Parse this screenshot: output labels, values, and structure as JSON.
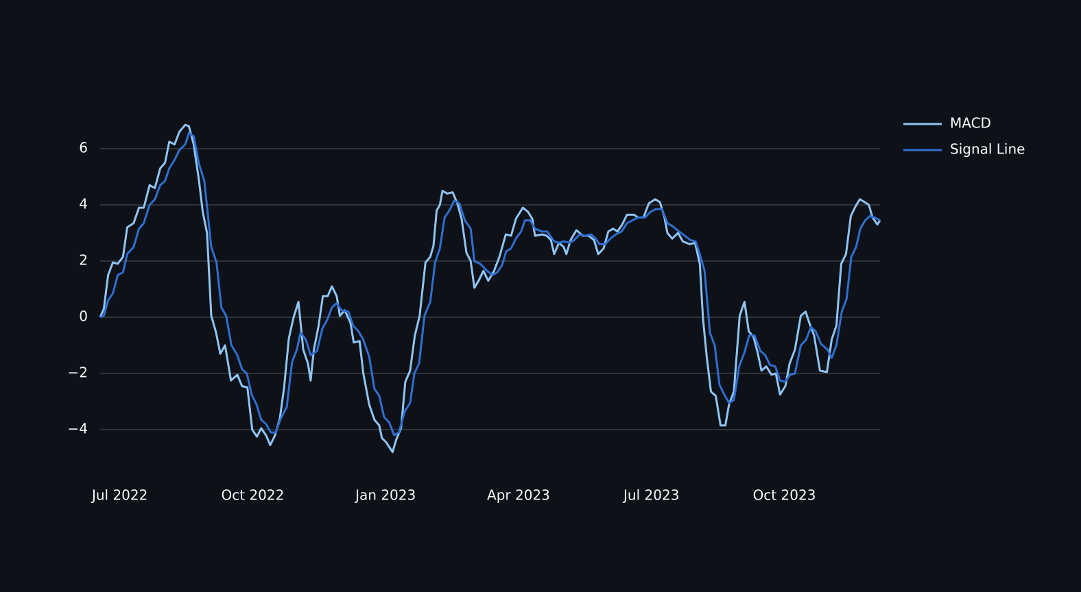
{
  "chart_data": {
    "type": "line",
    "xlim": [
      2022.463,
      2023.93
    ],
    "xticks": [
      {
        "value": 2022.5,
        "label": "Jul 2022"
      },
      {
        "value": 2022.75,
        "label": "Oct 2022"
      },
      {
        "value": 2023.0,
        "label": "Jan 2023"
      },
      {
        "value": 2023.25,
        "label": "Apr 2023"
      },
      {
        "value": 2023.5,
        "label": "Jul 2023"
      },
      {
        "value": 2023.75,
        "label": "Oct 2023"
      }
    ],
    "ylim": [
      -5,
      7
    ],
    "yticks": [
      {
        "value": -4,
        "label": "−4"
      },
      {
        "value": -2,
        "label": "−2"
      },
      0,
      2,
      4,
      6
    ],
    "grid": true,
    "legend": "top-right",
    "series": [
      {
        "name": "MACD",
        "color": "#8ec5f5",
        "x": [
          2022.463,
          2022.47,
          2022.478,
          2022.487,
          2022.496,
          2022.506,
          2022.514,
          2022.526,
          2022.536,
          2022.545,
          2022.556,
          2022.566,
          2022.576,
          2022.585,
          2022.593,
          2022.603,
          2022.612,
          2022.623,
          2022.63,
          2022.639,
          2022.649,
          2022.656,
          2022.664,
          2022.672,
          2022.681,
          2022.689,
          2022.698,
          2022.709,
          2022.721,
          2022.73,
          2022.74,
          2022.749,
          2022.758,
          2022.766,
          2022.775,
          2022.783,
          2022.792,
          2022.801,
          2022.809,
          2022.818,
          2022.827,
          2022.836,
          2022.845,
          2022.854,
          2022.859,
          2022.865,
          2022.874,
          2022.882,
          2022.891,
          2022.899,
          2022.908,
          2022.914,
          2022.923,
          2022.934,
          2022.94,
          2022.951,
          2022.958,
          2022.969,
          2022.979,
          2022.988,
          2022.993,
          2023.001,
          2023.013,
          2023.02,
          2023.029,
          2023.037,
          2023.046,
          2023.055,
          2023.064,
          2023.075,
          2023.084,
          2023.09,
          2023.096,
          2023.102,
          2023.107,
          2023.116,
          2023.126,
          2023.135,
          2023.143,
          2023.152,
          2023.16,
          2023.167,
          2023.175,
          2023.184,
          2023.193,
          2023.204,
          2023.214,
          2023.226,
          2023.236,
          2023.245,
          2023.258,
          2023.268,
          2023.276,
          2023.281,
          2023.294,
          2023.303,
          2023.311,
          2023.317,
          2023.326,
          2023.335,
          2023.34,
          2023.348,
          2023.359,
          2023.371,
          2023.382,
          2023.392,
          2023.4,
          2023.41,
          2023.419,
          2023.428,
          2023.436,
          2023.445,
          2023.454,
          2023.467,
          2023.475,
          2023.485,
          2023.495,
          2023.507,
          2023.516,
          2023.524,
          2023.53,
          2023.539,
          2023.55,
          2023.559,
          2023.572,
          2023.582,
          2023.591,
          2023.597,
          2023.604,
          2023.612,
          2023.621,
          2023.63,
          2023.639,
          2023.646,
          2023.655,
          2023.666,
          2023.675,
          2023.683,
          2023.692,
          2023.699,
          2023.707,
          2023.716,
          2023.726,
          2023.734,
          2023.742,
          2023.752,
          2023.76,
          2023.77,
          2023.781,
          2023.79,
          2023.797,
          2023.806,
          2023.817,
          2023.83,
          2023.839,
          2023.848,
          2023.857,
          2023.866,
          2023.875,
          2023.884,
          2023.892,
          2023.901,
          2023.909,
          2023.916,
          2023.925,
          2023.93
        ],
        "values": [
          0,
          0.3,
          1.5,
          1.95,
          1.9,
          2.15,
          3.2,
          3.35,
          3.9,
          3.9,
          4.7,
          4.6,
          5.3,
          5.5,
          6.25,
          6.15,
          6.6,
          6.85,
          6.8,
          6.15,
          4.85,
          3.75,
          3.0,
          0.05,
          -0.55,
          -1.3,
          -1.0,
          -2.25,
          -2.05,
          -2.45,
          -2.5,
          -4.0,
          -4.25,
          -3.95,
          -4.2,
          -4.55,
          -4.2,
          -3.6,
          -2.5,
          -0.75,
          0,
          0.55,
          -1.15,
          -1.65,
          -2.25,
          -1.15,
          -0.3,
          0.75,
          0.75,
          1.1,
          0.75,
          0.05,
          0.25,
          -0.2,
          -0.9,
          -0.85,
          -2.0,
          -3.1,
          -3.65,
          -3.85,
          -4.3,
          -4.45,
          -4.8,
          -4.35,
          -3.95,
          -2.3,
          -1.9,
          -0.65,
          0.05,
          1.95,
          2.15,
          2.55,
          3.8,
          4.0,
          4.5,
          4.4,
          4.45,
          4.05,
          3.5,
          2.3,
          2.0,
          1.05,
          1.3,
          1.65,
          1.3,
          1.65,
          2.15,
          2.95,
          2.9,
          3.5,
          3.9,
          3.75,
          3.5,
          2.9,
          2.95,
          2.9,
          2.75,
          2.25,
          2.65,
          2.5,
          2.25,
          2.75,
          3.1,
          2.9,
          2.9,
          2.75,
          2.25,
          2.45,
          3.05,
          3.15,
          3.05,
          3.3,
          3.65,
          3.65,
          3.55,
          3.55,
          4.05,
          4.2,
          4.1,
          3.6,
          3.0,
          2.8,
          3.0,
          2.7,
          2.6,
          2.65,
          1.9,
          -0.05,
          -1.4,
          -2.65,
          -2.8,
          -3.85,
          -3.85,
          -3.1,
          -2.65,
          0.05,
          0.55,
          -0.5,
          -0.7,
          -1.2,
          -1.9,
          -1.75,
          -2.05,
          -2.0,
          -2.75,
          -2.45,
          -1.65,
          -1.15,
          0.05,
          0.2,
          -0.2,
          -0.65,
          -1.9,
          -1.95,
          -0.8,
          -0.3,
          1.9,
          2.25,
          3.6,
          3.95,
          4.2,
          4.1,
          4.0,
          3.55,
          3.3,
          3.45
        ]
      },
      {
        "name": "Signal Line",
        "color": "#2e6fd1",
        "x": [
          2022.463,
          2022.47,
          2022.478,
          2022.487,
          2022.496,
          2022.506,
          2022.514,
          2022.526,
          2022.536,
          2022.545,
          2022.556,
          2022.566,
          2022.576,
          2022.585,
          2022.593,
          2022.603,
          2022.612,
          2022.623,
          2022.63,
          2022.639,
          2022.649,
          2022.659,
          2022.672,
          2022.682,
          2022.691,
          2022.7,
          2022.71,
          2022.721,
          2022.73,
          2022.739,
          2022.748,
          2022.757,
          2022.766,
          2022.775,
          2022.784,
          2022.793,
          2022.803,
          2022.814,
          2022.824,
          2022.833,
          2022.84,
          2022.85,
          2022.859,
          2022.871,
          2022.881,
          2022.89,
          2022.899,
          2022.908,
          2022.917,
          2022.93,
          2022.939,
          2022.949,
          2022.958,
          2022.969,
          2022.979,
          2022.988,
          2022.997,
          2023.007,
          2023.016,
          2023.025,
          2023.036,
          2023.046,
          2023.054,
          2023.063,
          2023.073,
          2023.084,
          2023.093,
          2023.102,
          2023.111,
          2023.12,
          2023.129,
          2023.139,
          2023.149,
          2023.16,
          2023.167,
          2023.178,
          2023.191,
          2023.201,
          2023.21,
          2023.219,
          2023.227,
          2023.236,
          2023.245,
          2023.255,
          2023.262,
          2023.272,
          2023.281,
          2023.294,
          2023.304,
          2023.317,
          2023.326,
          2023.335,
          2023.346,
          2023.355,
          2023.365,
          2023.375,
          2023.387,
          2023.395,
          2023.402,
          2023.413,
          2023.423,
          2023.433,
          2023.444,
          2023.454,
          2023.464,
          2023.475,
          2023.488,
          2023.498,
          2023.508,
          2023.52,
          2023.53,
          2023.539,
          2023.552,
          2023.563,
          2023.573,
          2023.583,
          2023.591,
          2023.6,
          2023.61,
          2023.619,
          2023.628,
          2023.637,
          2023.646,
          2023.655,
          2023.665,
          2023.675,
          2023.684,
          2023.694,
          2023.705,
          2023.714,
          2023.723,
          2023.733,
          2023.742,
          2023.751,
          2023.761,
          2023.77,
          2023.781,
          2023.791,
          2023.8,
          2023.809,
          2023.819,
          2023.831,
          2023.839,
          2023.848,
          2023.858,
          2023.867,
          2023.876,
          2023.885,
          2023.893,
          2023.902,
          2023.911,
          2023.92,
          2023.93
        ],
        "values": [
          0,
          0.05,
          0.6,
          0.85,
          1.5,
          1.6,
          2.25,
          2.5,
          3.15,
          3.35,
          4.0,
          4.2,
          4.7,
          4.85,
          5.3,
          5.6,
          5.95,
          6.15,
          6.55,
          6.45,
          5.45,
          4.85,
          2.5,
          1.95,
          0.35,
          0.05,
          -1.0,
          -1.35,
          -1.85,
          -2.0,
          -2.75,
          -3.1,
          -3.65,
          -3.8,
          -4.1,
          -4.1,
          -3.6,
          -3.2,
          -1.6,
          -1.15,
          -0.55,
          -0.8,
          -1.35,
          -1.2,
          -0.4,
          -0.1,
          0.35,
          0.5,
          0.25,
          0.2,
          -0.3,
          -0.5,
          -0.8,
          -1.4,
          -2.55,
          -2.8,
          -3.55,
          -3.75,
          -4.2,
          -4.1,
          -3.35,
          -3.05,
          -2.0,
          -1.65,
          0.05,
          0.55,
          1.95,
          2.45,
          3.55,
          3.8,
          4.15,
          4.05,
          3.45,
          3.15,
          2.0,
          1.9,
          1.65,
          1.5,
          1.6,
          1.85,
          2.35,
          2.45,
          2.8,
          3.05,
          3.45,
          3.45,
          3.15,
          3.05,
          3.05,
          2.7,
          2.65,
          2.7,
          2.65,
          2.75,
          2.95,
          2.9,
          2.95,
          2.8,
          2.6,
          2.6,
          2.8,
          2.95,
          3.05,
          3.35,
          3.45,
          3.55,
          3.55,
          3.75,
          3.85,
          3.85,
          3.35,
          3.25,
          3.05,
          2.9,
          2.75,
          2.7,
          2.25,
          1.65,
          -0.55,
          -1.0,
          -2.4,
          -2.75,
          -3.05,
          -2.95,
          -1.75,
          -1.25,
          -0.65,
          -0.65,
          -1.2,
          -1.35,
          -1.7,
          -1.75,
          -2.25,
          -2.3,
          -2.05,
          -2.0,
          -1.0,
          -0.8,
          -0.35,
          -0.5,
          -0.95,
          -1.15,
          -1.45,
          -1.0,
          0.2,
          0.65,
          2.15,
          2.5,
          3.15,
          3.45,
          3.6,
          3.55,
          3.45
        ]
      }
    ]
  }
}
